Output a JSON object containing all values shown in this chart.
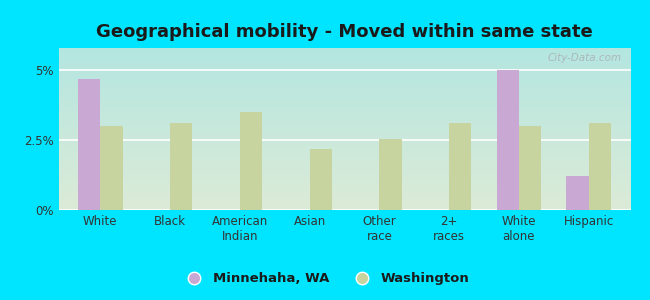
{
  "title": "Geographical mobility - Moved within same state",
  "categories": [
    "White",
    "Black",
    "American\nIndian",
    "Asian",
    "Other\nrace",
    "2+\nraces",
    "White\nalone",
    "Hispanic"
  ],
  "minnehaha_values": [
    4.7,
    0,
    0,
    0,
    0,
    0,
    5.0,
    1.2
  ],
  "washington_values": [
    3.0,
    3.1,
    3.5,
    2.2,
    2.55,
    3.1,
    3.0,
    3.1
  ],
  "minnehaha_color": "#c9a8d4",
  "washington_color": "#c8d4a0",
  "background_outer": "#00e5ff",
  "yticks": [
    0,
    2.5,
    5
  ],
  "ytick_labels": [
    "0%",
    "2.5%",
    "5%"
  ],
  "ylim": [
    0,
    5.8
  ],
  "bar_width": 0.32,
  "legend_minnehaha": "Minnehaha, WA",
  "legend_washington": "Washington",
  "watermark": "City-Data.com",
  "title_fontsize": 13,
  "tick_fontsize": 8.5,
  "legend_fontsize": 9.5
}
